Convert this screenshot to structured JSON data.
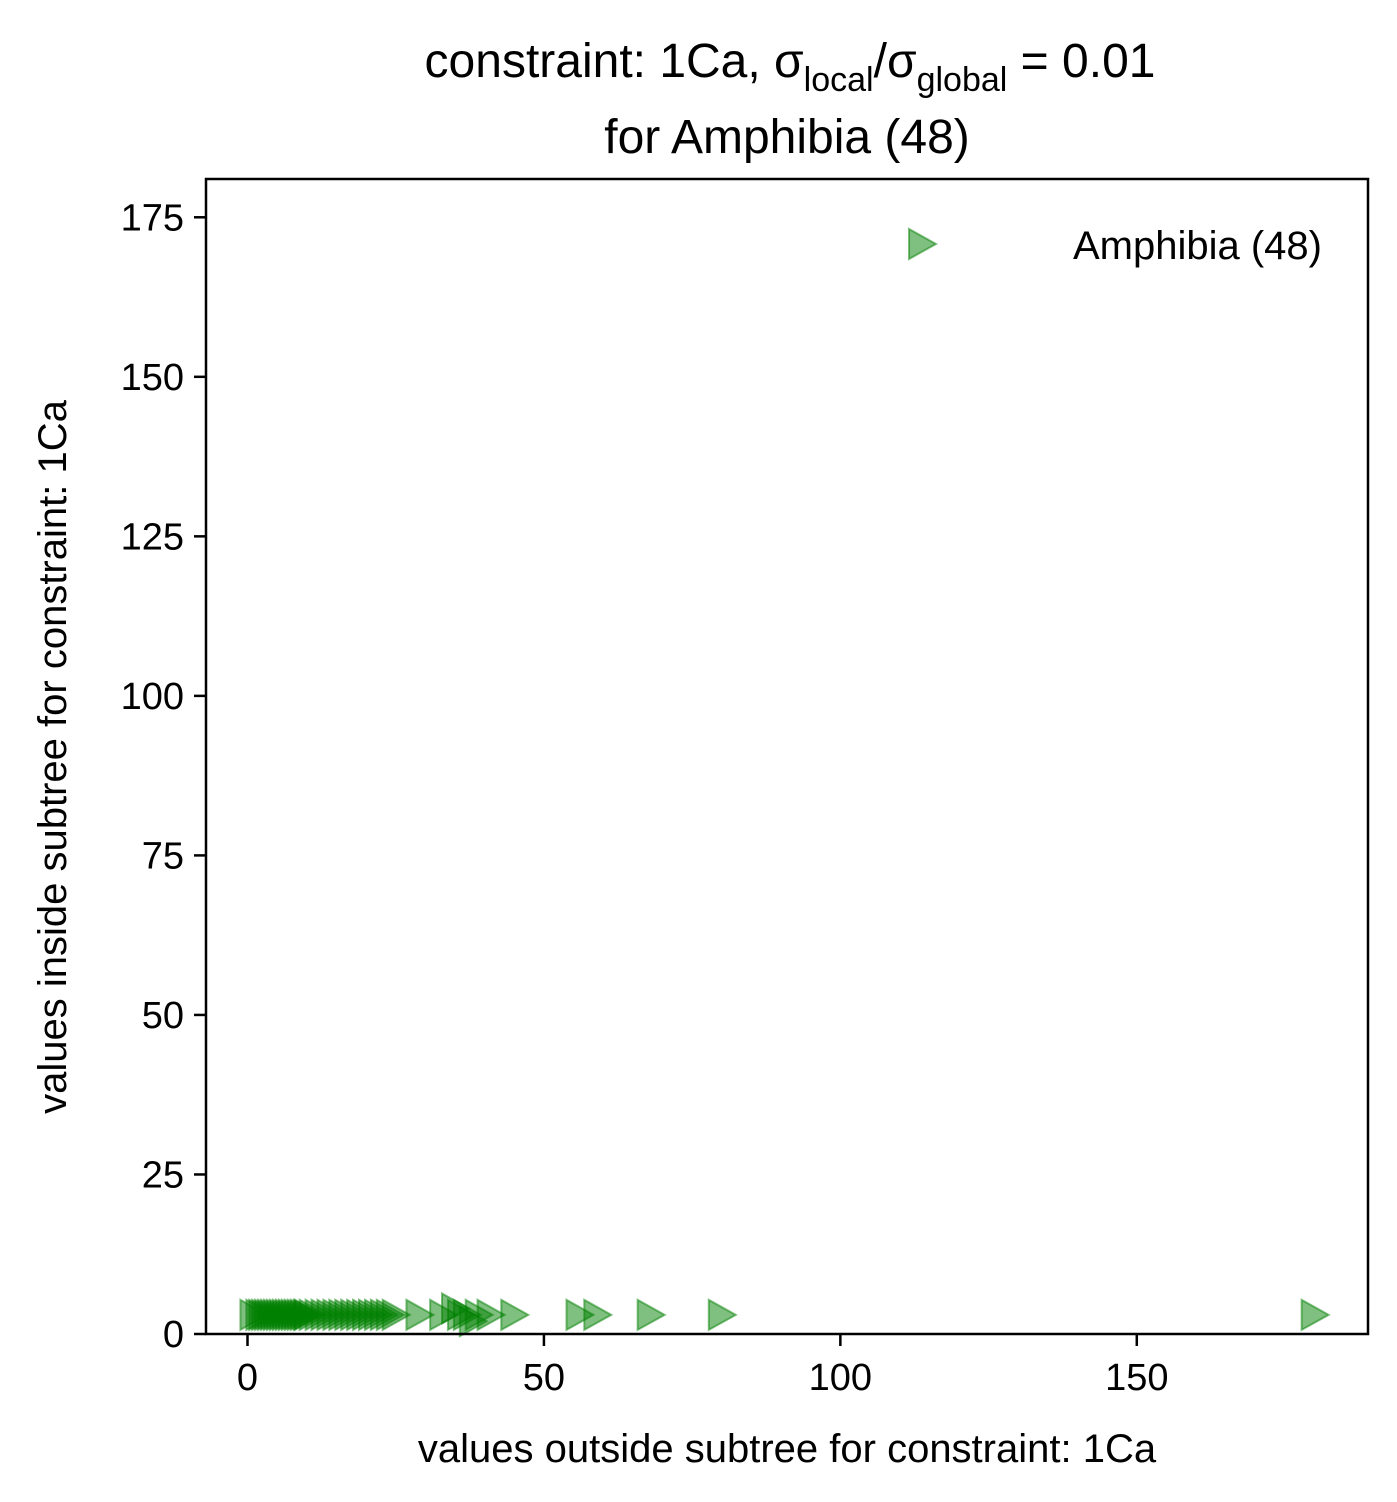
{
  "chart_data": {
    "type": "scatter",
    "title": {
      "line1_prefix": "constraint: 1Ca, σ",
      "local_sub": "local",
      "slash": "/σ",
      "global_sub": "global",
      "line1_suffix": " =  0.01",
      "line2": "for Amphibia (48)"
    },
    "xlabel": "values outside subtree for constraint: 1Ca",
    "ylabel": "values inside subtree for constraint: 1Ca",
    "xlim": [
      -7,
      189
    ],
    "ylim": [
      0,
      181
    ],
    "xticks": [
      0,
      50,
      100,
      150
    ],
    "yticks": [
      0,
      25,
      50,
      75,
      100,
      125,
      150,
      175
    ],
    "grid": false,
    "legend": {
      "placement": "top-right"
    },
    "series": [
      {
        "name": "Amphibia (48)",
        "marker": "triangle-right",
        "color": "#008000",
        "alpha": 0.5,
        "x": [
          1,
          2,
          2.5,
          3,
          3.5,
          4,
          4.5,
          5,
          5.5,
          6,
          6.5,
          7,
          7.5,
          8,
          8.5,
          9,
          9.5,
          10,
          11,
          12,
          13,
          14,
          15,
          16,
          17,
          18,
          19,
          20,
          21,
          22,
          23,
          24,
          25,
          29,
          33,
          35,
          36,
          37,
          38,
          39,
          41,
          45,
          56,
          59,
          68,
          80,
          180,
          10.2
        ],
        "y": [
          3,
          3,
          3,
          3,
          3,
          3,
          3,
          3,
          3,
          3,
          3,
          3,
          3,
          3,
          3,
          3,
          3,
          3,
          3,
          3,
          3,
          3,
          3,
          3,
          3,
          3,
          3,
          3,
          3,
          3,
          3,
          3,
          3,
          3,
          3,
          4,
          3,
          3,
          2,
          3,
          3,
          3,
          3,
          3,
          3,
          3,
          3,
          3
        ]
      }
    ]
  }
}
